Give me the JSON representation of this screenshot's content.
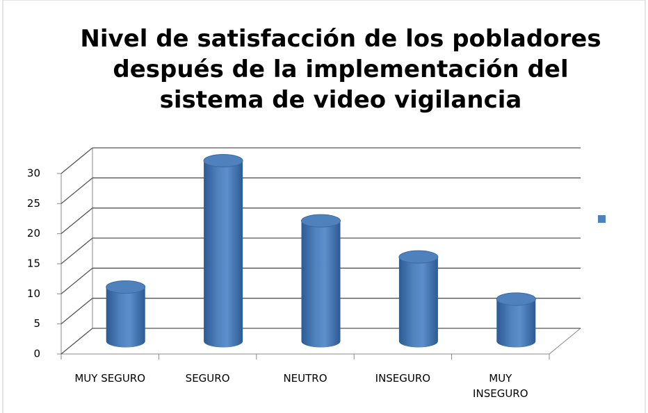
{
  "chart_data": {
    "type": "bar3d",
    "title": "Nivel de satisfacción de los pobladores después de la implementación del sistema de video vigilancia",
    "categories": [
      "MUY SEGURO",
      "SEGURO",
      "NEUTRO",
      "INSEGURO",
      "MUY INSEGURO"
    ],
    "values": [
      9,
      30,
      20,
      14,
      7
    ],
    "color": "#4f81bd",
    "ylim": [
      0,
      30
    ],
    "yticks": [
      0,
      5,
      10,
      15,
      20,
      25,
      30
    ],
    "grid": true
  }
}
